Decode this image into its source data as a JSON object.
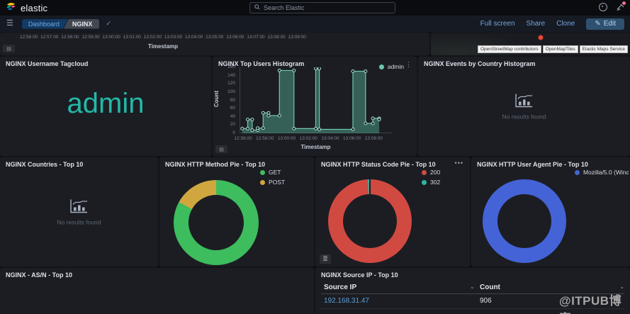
{
  "topbar": {
    "brand": "elastic",
    "search_placeholder": "Search Elastic"
  },
  "toolbar": {
    "breadcrumb_dashboard": "Dashboard",
    "breadcrumb_page": "NGINX",
    "saved_check": "✓",
    "full_screen": "Full screen",
    "share": "Share",
    "clone": "Clone",
    "edit": "Edit",
    "edit_icon": "✎"
  },
  "panels": {
    "timeline": {
      "xlabel": "Timestamp"
    },
    "map": {
      "attribution": [
        "OpenStreetMap contributors",
        "OpenMapTiles",
        "Elastic Maps Service"
      ]
    },
    "tagcloud": {
      "title": "NGINX Username Tagcloud",
      "word": "admin",
      "color": "#23b8a8"
    },
    "top_users": {
      "title": "NGINX Top Users Histogram",
      "menu_icon": "⋮"
    },
    "events_by_country": {
      "title": "NGINX Events by Country Histogram",
      "empty_text": "No results found"
    },
    "countries": {
      "title": "NGINX Countries - Top 10",
      "empty_text": "No results found"
    },
    "method_pie": {
      "title": "NGINX HTTP Method Pie - Top 10"
    },
    "status_pie": {
      "title": "NGINX HTTP Status Code Pie - Top 10",
      "options_icon": "•••",
      "legend_toggle_icon": "≣"
    },
    "user_agent_pie": {
      "title": "NGINX HTTP User Agent Pie - Top 10"
    },
    "asn": {
      "title": "NGINX - AS/N - Top 10"
    },
    "source_ip": {
      "title": "NGINX Source IP - Top 10",
      "sort_icon": "⌄"
    }
  },
  "chart_data": {
    "timeline_axis": {
      "type": "bar",
      "xlabel": "Timestamp",
      "x_ticks": [
        "12:56:00",
        "12:57:00",
        "12:58:00",
        "12:59:00",
        "13:00:00",
        "13:01:00",
        "13:02:00",
        "13:03:00",
        "13:04:00",
        "13:05:00",
        "13:06:00",
        "13:07:00",
        "13:08:00",
        "13:09:00"
      ]
    },
    "top_users": {
      "type": "area",
      "step": true,
      "title": "NGINX Top Users Histogram",
      "xlabel": "Timestamp",
      "ylabel": "Count",
      "ylim": [
        0,
        168
      ],
      "y_ticks": [
        0,
        20,
        40,
        60,
        80,
        100,
        120,
        140,
        160
      ],
      "x_ticks": [
        "12:56:00",
        "12:58:00",
        "13:00:00",
        "13:02:00",
        "13:04:00",
        "13:06:00",
        "13:08:00"
      ],
      "x_domain": [
        "12:55:40",
        "13:09:40"
      ],
      "legend_position": "top-right",
      "series": [
        {
          "name": "admin",
          "color": "#6fc7ae",
          "fill": "rgba(84,179,153,0.45)",
          "marker": "#a8e0cf",
          "points": [
            [
              "12:55:55",
              12
            ],
            [
              "12:56:25",
              35
            ],
            [
              "12:56:50",
              8
            ],
            [
              "12:57:20",
              13
            ],
            [
              "12:57:50",
              52
            ],
            [
              "12:58:20",
              45
            ],
            [
              "12:59:20",
              160
            ],
            [
              "13:00:40",
              12
            ],
            [
              "13:02:40",
              165
            ],
            [
              "13:03:00",
              10
            ],
            [
              "13:06:05",
              158
            ],
            [
              "13:07:15",
              25
            ],
            [
              "13:07:55",
              38
            ],
            [
              "13:08:30",
              35
            ]
          ]
        }
      ]
    },
    "method_pie": {
      "type": "pie",
      "slices": [
        {
          "label": "GET",
          "value": 83,
          "color": "#3dbd5d"
        },
        {
          "label": "POST",
          "value": 17,
          "color": "#cfa73e"
        }
      ]
    },
    "status_pie": {
      "type": "pie",
      "slices": [
        {
          "label": "200",
          "value": 99.2,
          "color": "#d14a41"
        },
        {
          "label": "302",
          "value": 0.8,
          "color": "#2eb5a5"
        }
      ]
    },
    "user_agent_pie": {
      "type": "pie",
      "slices": [
        {
          "label": "Mozilla/5.0 (Window…",
          "value": 100,
          "color": "#4463d7"
        }
      ]
    },
    "source_ip_table": {
      "type": "table",
      "columns": [
        "Source IP",
        "Count"
      ],
      "rows": [
        [
          "192.168.31.47",
          "906"
        ]
      ]
    }
  },
  "watermark": "@ITPUB博客"
}
